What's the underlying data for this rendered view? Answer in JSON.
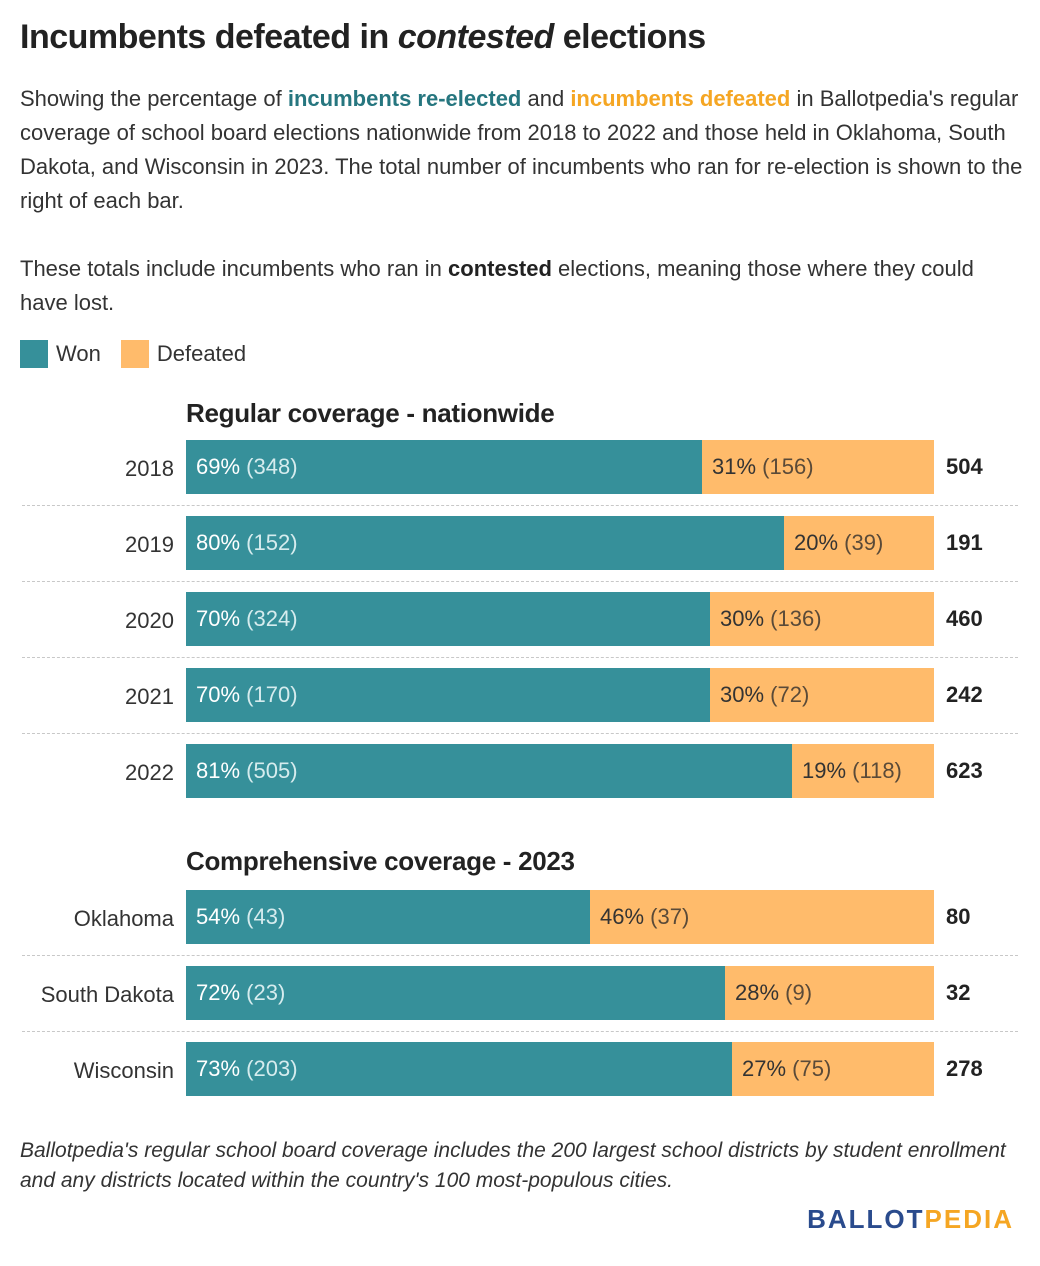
{
  "title": {
    "part1": "Incumbents defeated in ",
    "emphasis": "contested",
    "part2": " elections"
  },
  "description": {
    "p1_a": "Showing the percentage of ",
    "p1_won": "incumbents re-elected",
    "p1_b": " and ",
    "p1_def": "incumbents defeated",
    "p1_c": " in Ballotpedia's regular coverage of school board elections nationwide from 2018 to 2022 and those held in Oklahoma, South Dakota, and Wisconsin in 2023. The total number of incumbents who ran for re-election is shown to the right of each bar.",
    "p2_a": "These totals include incumbents who ran in ",
    "p2_bold": "contested",
    "p2_b": " elections, meaning those where they could have lost."
  },
  "legend": {
    "won": "Won",
    "defeated": "Defeated"
  },
  "colors": {
    "won": "#36909a",
    "defeated": "#ffbb6b",
    "won_text": "#26767f",
    "defeated_text": "#f5a623"
  },
  "chart_data": {
    "type": "bar",
    "orientation": "horizontal",
    "stacked": "percent",
    "legend_position": "top-left",
    "groups": [
      {
        "title": "Regular coverage - nationwide",
        "categories": [
          "2018",
          "2019",
          "2020",
          "2021",
          "2022"
        ],
        "series": [
          {
            "name": "Won",
            "percent": [
              69,
              80,
              70,
              70,
              81
            ],
            "count": [
              348,
              152,
              324,
              170,
              505
            ]
          },
          {
            "name": "Defeated",
            "percent": [
              31,
              20,
              30,
              30,
              19
            ],
            "count": [
              156,
              39,
              136,
              72,
              118
            ]
          }
        ],
        "totals": [
          504,
          191,
          460,
          242,
          623
        ]
      },
      {
        "title": "Comprehensive coverage - 2023",
        "categories": [
          "Oklahoma",
          "South Dakota",
          "Wisconsin"
        ],
        "series": [
          {
            "name": "Won",
            "percent": [
              54,
              72,
              73
            ],
            "count": [
              43,
              23,
              203
            ]
          },
          {
            "name": "Defeated",
            "percent": [
              46,
              28,
              27
            ],
            "count": [
              37,
              9,
              75
            ]
          }
        ],
        "totals": [
          80,
          32,
          278
        ]
      }
    ]
  },
  "footnote": "Ballotpedia's regular school board coverage includes the 200 largest school districts by student enrollment and any districts located within the country's 100 most-populous cities.",
  "logo": {
    "part1": "BALLOT",
    "part2": "PEDIA"
  }
}
